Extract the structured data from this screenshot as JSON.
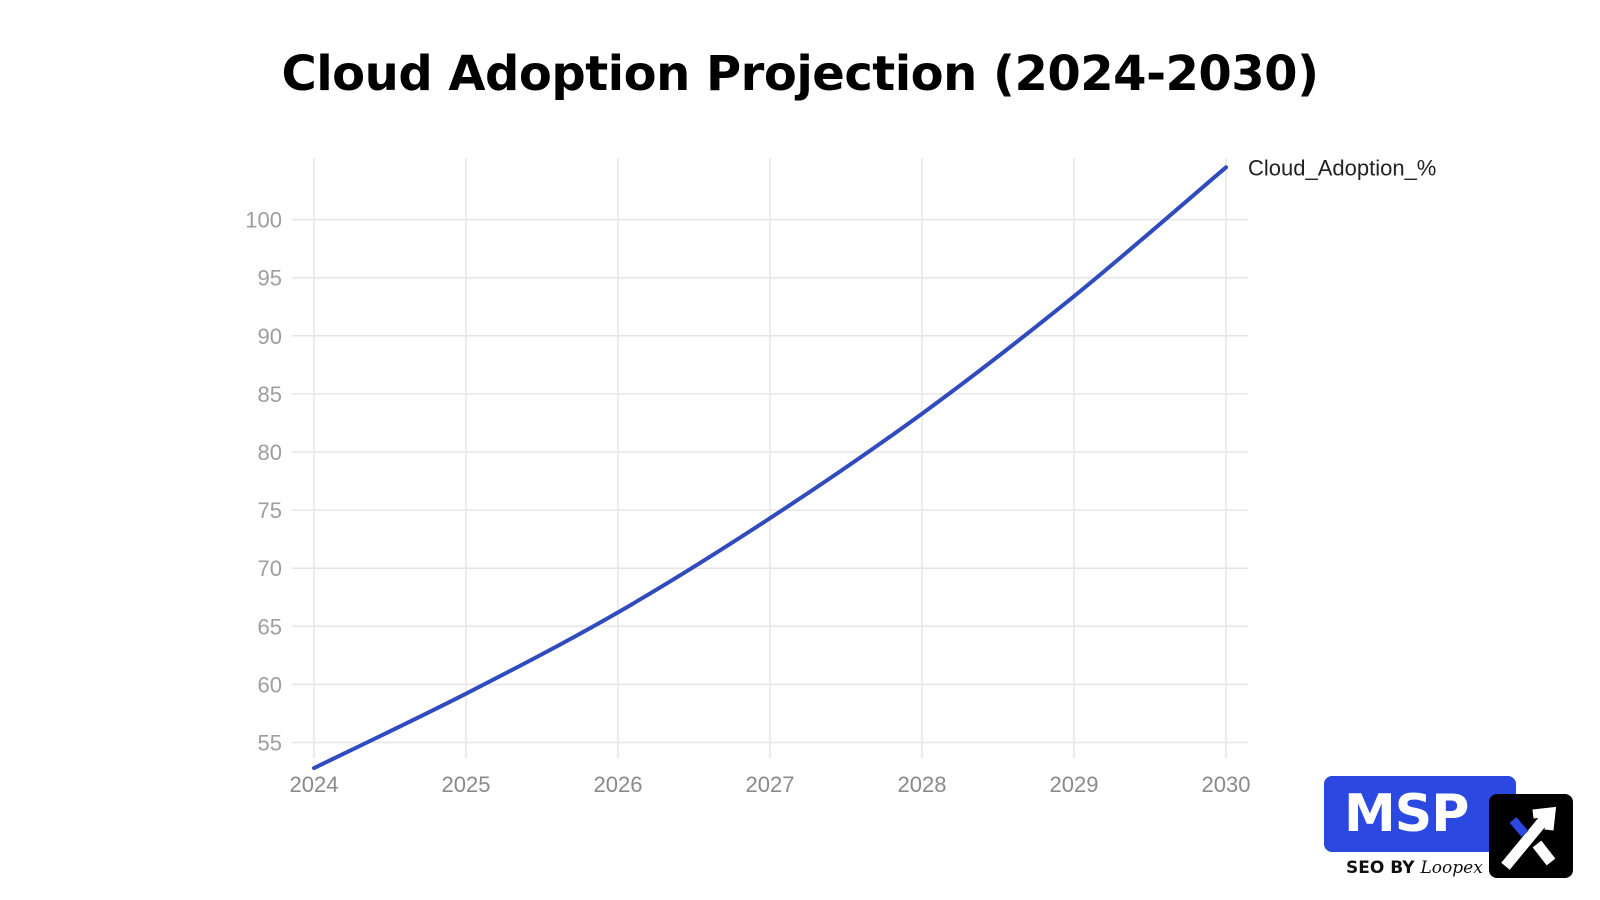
{
  "chart_data": {
    "type": "line",
    "title": "Cloud Adoption Projection (2024-2030)",
    "xlabel": "",
    "ylabel": "",
    "x": [
      2024,
      2025,
      2026,
      2027,
      2028,
      2029,
      2030
    ],
    "x_tick_labels": [
      "2024",
      "2025",
      "2026",
      "2027",
      "2028",
      "2029",
      "2030"
    ],
    "y_ticks": [
      55,
      60,
      65,
      70,
      75,
      80,
      85,
      90,
      95,
      100
    ],
    "y_tick_labels": [
      "55",
      "60",
      "65",
      "70",
      "75",
      "80",
      "85",
      "90",
      "95",
      "100"
    ],
    "xlim": [
      2024,
      2030
    ],
    "ylim": [
      52.8,
      104.5
    ],
    "grid": true,
    "legend": "direct-label-right",
    "series": [
      {
        "name": "Cloud_Adoption_%",
        "color": "#2f4bbd",
        "values": [
          52.8,
          59.2,
          66.2,
          74.3,
          83.3,
          93.4,
          104.5
        ]
      }
    ]
  },
  "logo": {
    "main_text": "MSP",
    "sub_prefix": "SEO BY",
    "sub_brand": "Loopex",
    "primary_color": "#2b48e0",
    "secondary_color": "#000000",
    "icon": "x-arrow-icon"
  }
}
